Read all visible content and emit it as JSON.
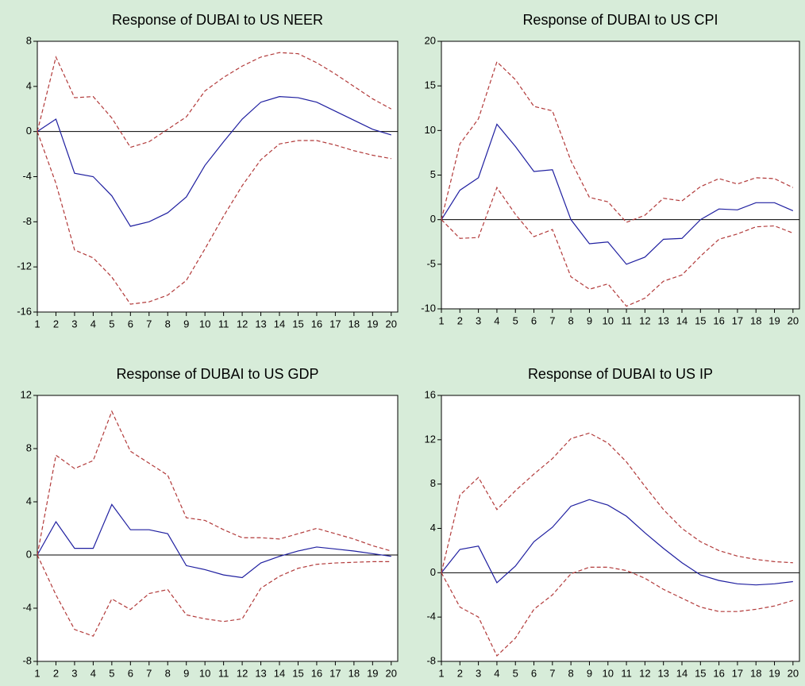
{
  "chart_data": [
    {
      "type": "line",
      "title": "Response of DUBAI to US NEER",
      "x": [
        1,
        2,
        3,
        4,
        5,
        6,
        7,
        8,
        9,
        10,
        11,
        12,
        13,
        14,
        15,
        16,
        17,
        18,
        19,
        20
      ],
      "xlim": [
        1,
        20.35
      ],
      "xticks": [
        1,
        2,
        3,
        4,
        5,
        6,
        7,
        8,
        9,
        10,
        11,
        12,
        13,
        14,
        15,
        16,
        17,
        18,
        19,
        20
      ],
      "ylim": [
        -16,
        8
      ],
      "yticks": [
        -16,
        -12,
        -8,
        -4,
        0,
        4,
        8
      ],
      "series": [
        {
          "color": "#1f1fa0",
          "style": "solid",
          "values": [
            0,
            1.1,
            -3.7,
            -4,
            -5.7,
            -8.4,
            -8,
            -7.2,
            -5.8,
            -3,
            -0.9,
            1.1,
            2.6,
            3.1,
            3.0,
            2.6,
            1.8,
            1.0,
            0.2,
            -0.3
          ]
        },
        {
          "color": "#b23a3a",
          "style": "dashed",
          "values": [
            0,
            6.6,
            3.0,
            3.1,
            1.2,
            -1.4,
            -0.9,
            0.2,
            1.3,
            3.6,
            4.8,
            5.8,
            6.6,
            7.0,
            6.9,
            6.1,
            5.1,
            4.0,
            2.9,
            2.0
          ]
        },
        {
          "color": "#b23a3a",
          "style": "dashed",
          "values": [
            0,
            -4.6,
            -10.5,
            -11.2,
            -12.9,
            -15.3,
            -15.1,
            -14.5,
            -13.2,
            -10.4,
            -7.5,
            -4.8,
            -2.5,
            -1.1,
            -0.8,
            -0.8,
            -1.2,
            -1.7,
            -2.1,
            -2.4
          ]
        }
      ]
    },
    {
      "type": "line",
      "title": "Response of DUBAI to US CPI",
      "x": [
        1,
        2,
        3,
        4,
        5,
        6,
        7,
        8,
        9,
        10,
        11,
        12,
        13,
        14,
        15,
        16,
        17,
        18,
        19,
        20
      ],
      "xlim": [
        1,
        20.35
      ],
      "xticks": [
        1,
        2,
        3,
        4,
        5,
        6,
        7,
        8,
        9,
        10,
        11,
        12,
        13,
        14,
        15,
        16,
        17,
        18,
        19,
        20
      ],
      "ylim": [
        -10,
        20
      ],
      "yticks": [
        -10,
        -5,
        0,
        5,
        10,
        15,
        20
      ],
      "series": [
        {
          "color": "#1f1fa0",
          "style": "solid",
          "values": [
            0,
            3.3,
            4.7,
            10.7,
            8.2,
            5.4,
            5.6,
            0,
            -2.7,
            -2.5,
            -5,
            -4.2,
            -2.2,
            -2.1,
            0,
            1.2,
            1.1,
            1.9,
            1.9,
            1.0
          ]
        },
        {
          "color": "#b23a3a",
          "style": "dashed",
          "values": [
            0,
            8.5,
            11.3,
            17.7,
            15.7,
            12.7,
            12.2,
            6.6,
            2.5,
            2.0,
            -0.3,
            0.5,
            2.4,
            2.1,
            3.7,
            4.6,
            4.0,
            4.7,
            4.6,
            3.6
          ]
        },
        {
          "color": "#b23a3a",
          "style": "dashed",
          "values": [
            0,
            -2.1,
            -2.0,
            3.6,
            0.6,
            -1.9,
            -1.1,
            -6.4,
            -7.8,
            -7.2,
            -9.7,
            -8.8,
            -6.9,
            -6.2,
            -4.1,
            -2.2,
            -1.6,
            -0.8,
            -0.7,
            -1.5
          ]
        }
      ]
    },
    {
      "type": "line",
      "title": "Response of DUBAI to US GDP",
      "x": [
        1,
        2,
        3,
        4,
        5,
        6,
        7,
        8,
        9,
        10,
        11,
        12,
        13,
        14,
        15,
        16,
        17,
        18,
        19,
        20
      ],
      "xlim": [
        1,
        20.35
      ],
      "xticks": [
        1,
        2,
        3,
        4,
        5,
        6,
        7,
        8,
        9,
        10,
        11,
        12,
        13,
        14,
        15,
        16,
        17,
        18,
        19,
        20
      ],
      "ylim": [
        -8,
        12
      ],
      "yticks": [
        -8,
        -4,
        0,
        4,
        8,
        12
      ],
      "series": [
        {
          "color": "#1f1fa0",
          "style": "solid",
          "values": [
            0,
            2.5,
            0.5,
            0.5,
            3.8,
            1.9,
            1.9,
            1.6,
            -0.8,
            -1.1,
            -1.5,
            -1.7,
            -0.6,
            -0.1,
            0.3,
            0.6,
            0.45,
            0.3,
            0.1,
            -0.1
          ]
        },
        {
          "color": "#b23a3a",
          "style": "dashed",
          "values": [
            0,
            7.5,
            6.5,
            7.1,
            10.8,
            7.8,
            6.9,
            6.0,
            2.8,
            2.6,
            1.9,
            1.3,
            1.3,
            1.2,
            1.6,
            2.0,
            1.6,
            1.2,
            0.7,
            0.3
          ]
        },
        {
          "color": "#b23a3a",
          "style": "dashed",
          "values": [
            0,
            -3.0,
            -5.6,
            -6.1,
            -3.3,
            -4.1,
            -2.9,
            -2.6,
            -4.5,
            -4.8,
            -5.0,
            -4.8,
            -2.5,
            -1.6,
            -1.0,
            -0.7,
            -0.6,
            -0.55,
            -0.5,
            -0.5
          ]
        }
      ]
    },
    {
      "type": "line",
      "title": "Response of DUBAI to US IP",
      "x": [
        1,
        2,
        3,
        4,
        5,
        6,
        7,
        8,
        9,
        10,
        11,
        12,
        13,
        14,
        15,
        16,
        17,
        18,
        19,
        20
      ],
      "xlim": [
        1,
        20.35
      ],
      "xticks": [
        1,
        2,
        3,
        4,
        5,
        6,
        7,
        8,
        9,
        10,
        11,
        12,
        13,
        14,
        15,
        16,
        17,
        18,
        19,
        20
      ],
      "ylim": [
        -8,
        16
      ],
      "yticks": [
        -8,
        -4,
        0,
        4,
        8,
        12,
        16
      ],
      "series": [
        {
          "color": "#1f1fa0",
          "style": "solid",
          "values": [
            0,
            2.1,
            2.4,
            -0.9,
            0.6,
            2.8,
            4.1,
            6.0,
            6.6,
            6.1,
            5.1,
            3.6,
            2.2,
            0.9,
            -0.2,
            -0.7,
            -1.0,
            -1.1,
            -1.0,
            -0.8
          ]
        },
        {
          "color": "#b23a3a",
          "style": "dashed",
          "values": [
            0,
            7.0,
            8.6,
            5.7,
            7.4,
            8.9,
            10.3,
            12.1,
            12.6,
            11.7,
            10.0,
            7.8,
            5.7,
            4.0,
            2.8,
            2.0,
            1.5,
            1.2,
            1.0,
            0.9
          ]
        },
        {
          "color": "#b23a3a",
          "style": "dashed",
          "values": [
            0,
            -3.1,
            -4.0,
            -7.5,
            -5.9,
            -3.3,
            -2.0,
            -0.1,
            0.5,
            0.5,
            0.2,
            -0.5,
            -1.5,
            -2.3,
            -3.1,
            -3.5,
            -3.5,
            -3.3,
            -3.0,
            -2.5
          ]
        }
      ]
    }
  ]
}
